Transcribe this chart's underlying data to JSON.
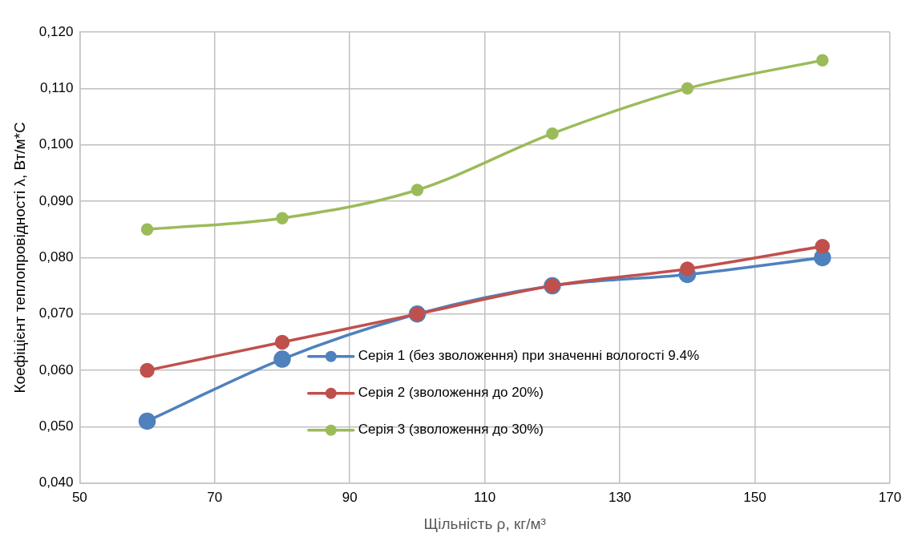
{
  "chart_data": {
    "type": "line",
    "xlabel": "Щільність ρ, кг/м³",
    "ylabel": "Коефіцієнт теплопровідності λ, Вт/м*С",
    "x": [
      60,
      80,
      100,
      120,
      140,
      160
    ],
    "series": [
      {
        "name": "Серія 1 (без зволоження) при значенні вологості 9.4%",
        "color": "#4f81bd",
        "values": [
          0.051,
          0.062,
          0.07,
          0.075,
          0.077,
          0.08
        ]
      },
      {
        "name": "Серія 2 (зволоження до 20%)",
        "color": "#c0504d",
        "values": [
          0.06,
          0.065,
          0.07,
          0.075,
          0.078,
          0.082
        ]
      },
      {
        "name": "Серія 3 (зволоження до 30%)",
        "color": "#9bbb59",
        "values": [
          0.085,
          0.087,
          0.092,
          0.102,
          0.11,
          0.115
        ]
      }
    ],
    "xlim": [
      50,
      170
    ],
    "xticks": [
      50,
      70,
      90,
      110,
      130,
      150,
      170
    ],
    "ylim": [
      0.04,
      0.12
    ],
    "yticks": [
      {
        "value": 0.04,
        "label": "0,040"
      },
      {
        "value": 0.05,
        "label": "0,050"
      },
      {
        "value": 0.06,
        "label": "0,060"
      },
      {
        "value": 0.07,
        "label": "0,070"
      },
      {
        "value": 0.08,
        "label": "0,080"
      },
      {
        "value": 0.09,
        "label": "0,090"
      },
      {
        "value": 0.1,
        "label": "0,100"
      },
      {
        "value": 0.11,
        "label": "0,110"
      },
      {
        "value": 0.12,
        "label": "0,120"
      }
    ],
    "grid": true,
    "legend": "bottom right",
    "marker": "circle",
    "line_style": "solid"
  }
}
